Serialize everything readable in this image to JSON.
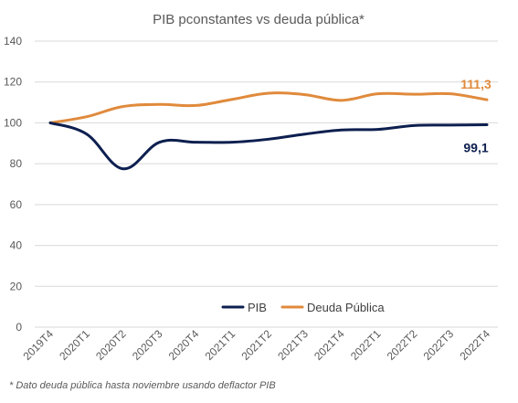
{
  "chart_data": {
    "type": "line",
    "title": "PIB pconstantes vs deuda pública*",
    "categories": [
      "2019T4",
      "2020T1",
      "2020T2",
      "2020T3",
      "2020T4",
      "2021T1",
      "2021T2",
      "2021T3",
      "2021T4",
      "2022T1",
      "2022T2",
      "2022T3",
      "2022T4"
    ],
    "series": [
      {
        "name": "PIB",
        "color": "#0d1f4f",
        "values": [
          100,
          94.5,
          77.5,
          90.5,
          90.5,
          90.5,
          92,
          94.5,
          96.5,
          96.8,
          98.7,
          98.9,
          99.1
        ]
      },
      {
        "name": "Deuda Pública",
        "color": "#e08a3c",
        "values": [
          100,
          103,
          108,
          109,
          108.5,
          111.5,
          114.5,
          113.8,
          111,
          114.2,
          114,
          114.2,
          111.3
        ]
      }
    ],
    "end_labels": [
      {
        "series": "PIB",
        "text": "99,1",
        "color": "#0d1f4f"
      },
      {
        "series": "Deuda Pública",
        "text": "111,3",
        "color": "#e08a3c"
      }
    ],
    "yticks": [
      "0",
      "20",
      "40",
      "60",
      "80",
      "100",
      "120",
      "140"
    ],
    "ylim": [
      0,
      140
    ],
    "xlabel": "",
    "ylabel": "",
    "grid": true,
    "legend_position": "bottom-center",
    "gridline_color": "#d9d9d9"
  },
  "footnote": "* Dato deuda pública hasta noviembre usando deflactor PIB"
}
